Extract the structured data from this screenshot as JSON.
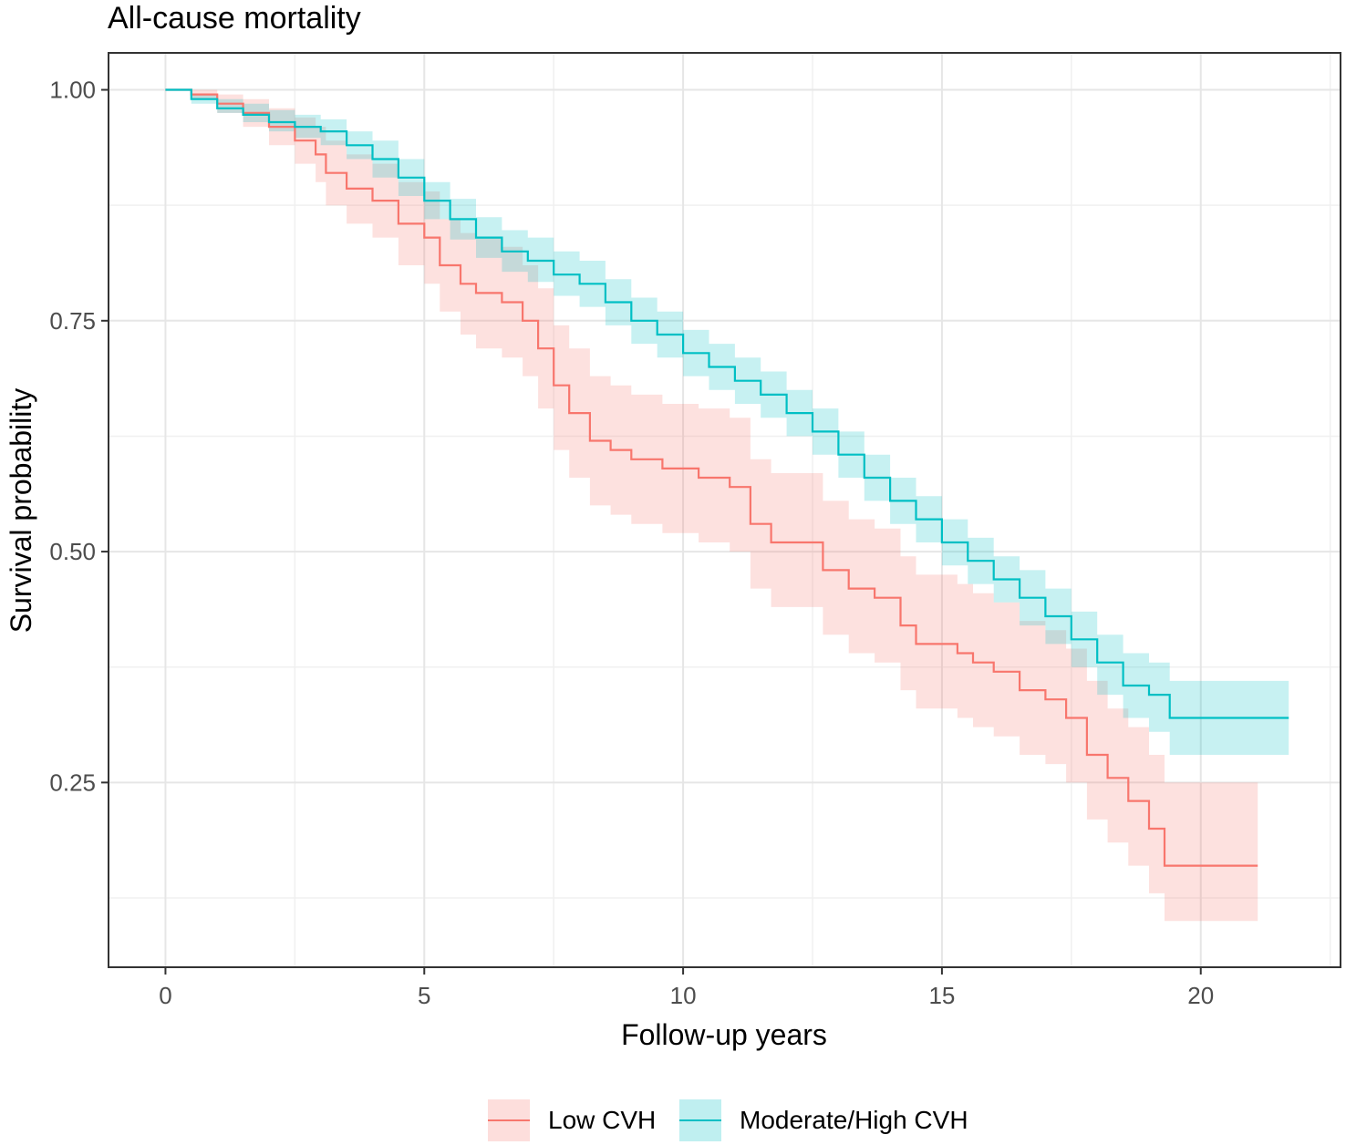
{
  "chart_data": {
    "type": "line",
    "subtype": "kaplan-meier survival curve with confidence bands",
    "title": "All-cause mortality",
    "xlabel": "Follow-up years",
    "ylabel": "Survival probability",
    "xlim": [
      -1.1,
      22.7
    ],
    "ylim": [
      0.05,
      1.04
    ],
    "x_ticks": [
      0,
      5,
      10,
      15,
      20
    ],
    "x_tick_labels": [
      "0",
      "5",
      "10",
      "15",
      "20"
    ],
    "y_ticks": [
      0.25,
      0.5,
      0.75,
      1.0
    ],
    "y_tick_labels": [
      "0.25",
      "0.50",
      "0.75",
      "1.00"
    ],
    "grid": true,
    "legend_position": "bottom",
    "series": [
      {
        "name": "Low CVH",
        "color": "#F8766D",
        "band_color": "#F8766D",
        "points": [
          [
            0,
            1.0
          ],
          [
            0.5,
            0.995
          ],
          [
            1.0,
            0.985
          ],
          [
            1.5,
            0.975
          ],
          [
            2.0,
            0.96
          ],
          [
            2.5,
            0.945
          ],
          [
            2.9,
            0.93
          ],
          [
            3.1,
            0.91
          ],
          [
            3.5,
            0.893
          ],
          [
            4.0,
            0.88
          ],
          [
            4.5,
            0.855
          ],
          [
            5.0,
            0.84
          ],
          [
            5.3,
            0.81
          ],
          [
            5.7,
            0.79
          ],
          [
            6.0,
            0.78
          ],
          [
            6.5,
            0.77
          ],
          [
            6.9,
            0.75
          ],
          [
            7.2,
            0.72
          ],
          [
            7.5,
            0.68
          ],
          [
            7.8,
            0.65
          ],
          [
            8.2,
            0.62
          ],
          [
            8.6,
            0.61
          ],
          [
            9.0,
            0.6
          ],
          [
            9.6,
            0.59
          ],
          [
            10.3,
            0.58
          ],
          [
            10.9,
            0.57
          ],
          [
            11.3,
            0.53
          ],
          [
            11.7,
            0.51
          ],
          [
            12.3,
            0.51
          ],
          [
            12.7,
            0.48
          ],
          [
            13.2,
            0.46
          ],
          [
            13.7,
            0.45
          ],
          [
            14.2,
            0.42
          ],
          [
            14.5,
            0.4
          ],
          [
            15.3,
            0.39
          ],
          [
            15.6,
            0.38
          ],
          [
            16.0,
            0.37
          ],
          [
            16.5,
            0.35
          ],
          [
            17.0,
            0.34
          ],
          [
            17.4,
            0.32
          ],
          [
            17.8,
            0.28
          ],
          [
            18.2,
            0.255
          ],
          [
            18.6,
            0.23
          ],
          [
            19.0,
            0.2
          ],
          [
            19.3,
            0.16
          ],
          [
            21.1,
            0.16
          ]
        ],
        "lower": [
          [
            0,
            1.0
          ],
          [
            0.5,
            0.99
          ],
          [
            1.0,
            0.975
          ],
          [
            1.5,
            0.96
          ],
          [
            2.0,
            0.94
          ],
          [
            2.5,
            0.92
          ],
          [
            2.9,
            0.9
          ],
          [
            3.1,
            0.875
          ],
          [
            3.5,
            0.855
          ],
          [
            4.0,
            0.84
          ],
          [
            4.5,
            0.81
          ],
          [
            5.0,
            0.79
          ],
          [
            5.3,
            0.76
          ],
          [
            5.7,
            0.735
          ],
          [
            6.0,
            0.72
          ],
          [
            6.5,
            0.71
          ],
          [
            6.9,
            0.69
          ],
          [
            7.2,
            0.655
          ],
          [
            7.5,
            0.61
          ],
          [
            7.8,
            0.58
          ],
          [
            8.2,
            0.55
          ],
          [
            8.6,
            0.54
          ],
          [
            9.0,
            0.53
          ],
          [
            9.6,
            0.52
          ],
          [
            10.3,
            0.51
          ],
          [
            10.9,
            0.5
          ],
          [
            11.3,
            0.46
          ],
          [
            11.7,
            0.44
          ],
          [
            12.3,
            0.44
          ],
          [
            12.7,
            0.41
          ],
          [
            13.2,
            0.39
          ],
          [
            13.7,
            0.38
          ],
          [
            14.2,
            0.35
          ],
          [
            14.5,
            0.33
          ],
          [
            15.3,
            0.32
          ],
          [
            15.6,
            0.31
          ],
          [
            16.0,
            0.3
          ],
          [
            16.5,
            0.28
          ],
          [
            17.0,
            0.27
          ],
          [
            17.4,
            0.25
          ],
          [
            17.8,
            0.21
          ],
          [
            18.2,
            0.185
          ],
          [
            18.6,
            0.16
          ],
          [
            19.0,
            0.13
          ],
          [
            19.3,
            0.1
          ],
          [
            21.1,
            0.1
          ]
        ],
        "upper": [
          [
            0,
            1.0
          ],
          [
            0.5,
            1.0
          ],
          [
            1.0,
            0.995
          ],
          [
            1.5,
            0.99
          ],
          [
            2.0,
            0.98
          ],
          [
            2.5,
            0.97
          ],
          [
            2.9,
            0.96
          ],
          [
            3.1,
            0.945
          ],
          [
            3.5,
            0.93
          ],
          [
            4.0,
            0.92
          ],
          [
            4.5,
            0.9
          ],
          [
            5.0,
            0.89
          ],
          [
            5.3,
            0.86
          ],
          [
            5.7,
            0.845
          ],
          [
            6.0,
            0.84
          ],
          [
            6.5,
            0.83
          ],
          [
            6.9,
            0.81
          ],
          [
            7.2,
            0.785
          ],
          [
            7.5,
            0.745
          ],
          [
            7.8,
            0.72
          ],
          [
            8.2,
            0.69
          ],
          [
            8.6,
            0.68
          ],
          [
            9.0,
            0.67
          ],
          [
            9.6,
            0.66
          ],
          [
            10.3,
            0.655
          ],
          [
            10.9,
            0.645
          ],
          [
            11.3,
            0.6
          ],
          [
            11.7,
            0.585
          ],
          [
            12.3,
            0.585
          ],
          [
            12.7,
            0.555
          ],
          [
            13.2,
            0.535
          ],
          [
            13.7,
            0.525
          ],
          [
            14.2,
            0.495
          ],
          [
            14.5,
            0.475
          ],
          [
            15.3,
            0.465
          ],
          [
            15.6,
            0.455
          ],
          [
            16.0,
            0.445
          ],
          [
            16.5,
            0.425
          ],
          [
            17.0,
            0.415
          ],
          [
            17.4,
            0.395
          ],
          [
            17.8,
            0.36
          ],
          [
            18.2,
            0.33
          ],
          [
            18.6,
            0.31
          ],
          [
            19.0,
            0.28
          ],
          [
            19.3,
            0.25
          ],
          [
            21.1,
            0.25
          ]
        ]
      },
      {
        "name": "Moderate/High CVH",
        "color": "#00BFC4",
        "band_color": "#00BFC4",
        "points": [
          [
            0,
            1.0
          ],
          [
            0.5,
            0.99
          ],
          [
            1.0,
            0.98
          ],
          [
            1.5,
            0.973
          ],
          [
            2.0,
            0.965
          ],
          [
            2.5,
            0.96
          ],
          [
            3.0,
            0.955
          ],
          [
            3.5,
            0.94
          ],
          [
            4.0,
            0.925
          ],
          [
            4.5,
            0.905
          ],
          [
            5.0,
            0.88
          ],
          [
            5.5,
            0.86
          ],
          [
            6.0,
            0.84
          ],
          [
            6.5,
            0.825
          ],
          [
            7.0,
            0.815
          ],
          [
            7.5,
            0.8
          ],
          [
            8.0,
            0.79
          ],
          [
            8.5,
            0.77
          ],
          [
            9.0,
            0.75
          ],
          [
            9.5,
            0.735
          ],
          [
            10.0,
            0.715
          ],
          [
            10.5,
            0.7
          ],
          [
            11.0,
            0.685
          ],
          [
            11.5,
            0.67
          ],
          [
            12.0,
            0.65
          ],
          [
            12.5,
            0.63
          ],
          [
            13.0,
            0.605
          ],
          [
            13.5,
            0.58
          ],
          [
            14.0,
            0.555
          ],
          [
            14.5,
            0.535
          ],
          [
            15.0,
            0.51
          ],
          [
            15.5,
            0.49
          ],
          [
            16.0,
            0.47
          ],
          [
            16.5,
            0.45
          ],
          [
            17.0,
            0.43
          ],
          [
            17.5,
            0.405
          ],
          [
            18.0,
            0.38
          ],
          [
            18.5,
            0.355
          ],
          [
            19.0,
            0.345
          ],
          [
            19.4,
            0.32
          ],
          [
            21.7,
            0.32
          ]
        ],
        "lower": [
          [
            0,
            1.0
          ],
          [
            0.5,
            0.985
          ],
          [
            1.0,
            0.975
          ],
          [
            1.5,
            0.965
          ],
          [
            2.0,
            0.955
          ],
          [
            2.5,
            0.948
          ],
          [
            3.0,
            0.94
          ],
          [
            3.5,
            0.925
          ],
          [
            4.0,
            0.905
          ],
          [
            4.5,
            0.885
          ],
          [
            5.0,
            0.86
          ],
          [
            5.5,
            0.838
          ],
          [
            6.0,
            0.818
          ],
          [
            6.5,
            0.803
          ],
          [
            7.0,
            0.792
          ],
          [
            7.5,
            0.777
          ],
          [
            8.0,
            0.765
          ],
          [
            8.5,
            0.745
          ],
          [
            9.0,
            0.725
          ],
          [
            9.5,
            0.71
          ],
          [
            10.0,
            0.69
          ],
          [
            10.5,
            0.675
          ],
          [
            11.0,
            0.66
          ],
          [
            11.5,
            0.645
          ],
          [
            12.0,
            0.625
          ],
          [
            12.5,
            0.605
          ],
          [
            13.0,
            0.58
          ],
          [
            13.5,
            0.555
          ],
          [
            14.0,
            0.53
          ],
          [
            14.5,
            0.51
          ],
          [
            15.0,
            0.485
          ],
          [
            15.5,
            0.465
          ],
          [
            16.0,
            0.445
          ],
          [
            16.5,
            0.42
          ],
          [
            17.0,
            0.4
          ],
          [
            17.5,
            0.375
          ],
          [
            18.0,
            0.345
          ],
          [
            18.5,
            0.32
          ],
          [
            19.0,
            0.305
          ],
          [
            19.4,
            0.28
          ],
          [
            21.7,
            0.28
          ]
        ],
        "upper": [
          [
            0,
            1.0
          ],
          [
            0.5,
            0.995
          ],
          [
            1.0,
            0.99
          ],
          [
            1.5,
            0.985
          ],
          [
            2.0,
            0.978
          ],
          [
            2.5,
            0.973
          ],
          [
            3.0,
            0.968
          ],
          [
            3.5,
            0.955
          ],
          [
            4.0,
            0.945
          ],
          [
            4.5,
            0.925
          ],
          [
            5.0,
            0.9
          ],
          [
            5.5,
            0.882
          ],
          [
            6.0,
            0.862
          ],
          [
            6.5,
            0.848
          ],
          [
            7.0,
            0.84
          ],
          [
            7.5,
            0.825
          ],
          [
            8.0,
            0.815
          ],
          [
            8.5,
            0.795
          ],
          [
            9.0,
            0.775
          ],
          [
            9.5,
            0.76
          ],
          [
            10.0,
            0.74
          ],
          [
            10.5,
            0.725
          ],
          [
            11.0,
            0.71
          ],
          [
            11.5,
            0.695
          ],
          [
            12.0,
            0.675
          ],
          [
            12.5,
            0.655
          ],
          [
            13.0,
            0.63
          ],
          [
            13.5,
            0.605
          ],
          [
            14.0,
            0.58
          ],
          [
            14.5,
            0.56
          ],
          [
            15.0,
            0.535
          ],
          [
            15.5,
            0.515
          ],
          [
            16.0,
            0.495
          ],
          [
            16.5,
            0.48
          ],
          [
            17.0,
            0.46
          ],
          [
            17.5,
            0.435
          ],
          [
            18.0,
            0.41
          ],
          [
            18.5,
            0.39
          ],
          [
            19.0,
            0.38
          ],
          [
            19.4,
            0.36
          ],
          [
            21.7,
            0.36
          ]
        ]
      }
    ]
  }
}
